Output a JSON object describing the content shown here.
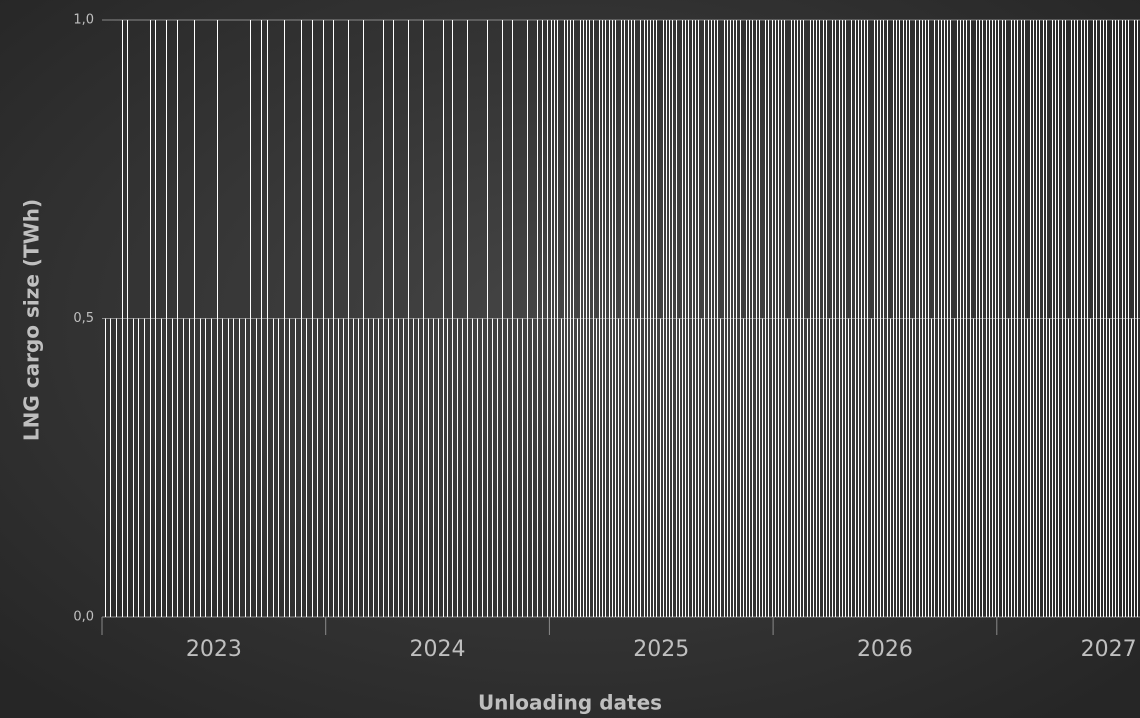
{
  "chart_data": {
    "type": "bar",
    "ylabel": "LNG cargo size (TWh)",
    "xlabel": "Unloading dates",
    "ylim": [
      0,
      1
    ],
    "yticks": [
      {
        "value": 0,
        "label": "0,0"
      },
      {
        "value": 0.5,
        "label": "0,5"
      },
      {
        "value": 1,
        "label": "1,0"
      }
    ],
    "grid": true,
    "color": "#ffffff",
    "groups": [
      {
        "label": "2023",
        "values": [
          0.5,
          0.5,
          0.5,
          1,
          1,
          0.5,
          0.5,
          0.5,
          1,
          1,
          0.5,
          1,
          0.5,
          1,
          0.5,
          0.5,
          1,
          0.5,
          0.5,
          0.5,
          1,
          0.5,
          0.5,
          0.5,
          0.5,
          0.5,
          1,
          0.5,
          1,
          1,
          0.5,
          0.5,
          1,
          0.5,
          0.5,
          1,
          0.5,
          1,
          0.5,
          1
        ]
      },
      {
        "label": "2024",
        "values": [
          0.5,
          1,
          0.5,
          0.5,
          1,
          0.5,
          0.5,
          1,
          0.5,
          0.5,
          0.5,
          1,
          0.5,
          1,
          0.5,
          0.5,
          1,
          0.5,
          0.5,
          1,
          0.5,
          0.5,
          0.5,
          1,
          0.5,
          1,
          0.5,
          0.5,
          1,
          0.5,
          0.5,
          0.5,
          1,
          0.5,
          0.5,
          1,
          0.5,
          1,
          0.5,
          0.5,
          1,
          0.5,
          1,
          1,
          1
        ]
      },
      {
        "label": "2025",
        "values": [
          1,
          1,
          1,
          0.5,
          1,
          1,
          1,
          1,
          0.5,
          1,
          1,
          1,
          1,
          1,
          0.5,
          1,
          1,
          1,
          1,
          1,
          1,
          0.5,
          1,
          1,
          1,
          1,
          1,
          0.5,
          1,
          1,
          1,
          1,
          1,
          1,
          0.5,
          1,
          1,
          1,
          1,
          1,
          0.5,
          1,
          1,
          1,
          1,
          1,
          1,
          0.5,
          1,
          1,
          1,
          1,
          1,
          0.5,
          1,
          1,
          1,
          1,
          1,
          1,
          0.5,
          1,
          1,
          1,
          1,
          1,
          0.5,
          1,
          1,
          1
        ]
      },
      {
        "label": "2026",
        "values": [
          1,
          1,
          1,
          1,
          0.5,
          1,
          1,
          1,
          1,
          1,
          0.5,
          1,
          1,
          1,
          1,
          1,
          1,
          0.5,
          1,
          1,
          1,
          1,
          1,
          0.5,
          1,
          1,
          1,
          1,
          1,
          1,
          0.5,
          1,
          1,
          1,
          1,
          1,
          0.5,
          1,
          1,
          1,
          1,
          1,
          1,
          0.5,
          1,
          1,
          1,
          1,
          1,
          0.5,
          1,
          1,
          1,
          1,
          1,
          1,
          0.5,
          1,
          1,
          1,
          1,
          1,
          0.5,
          1,
          1,
          1,
          1,
          1,
          1,
          1
        ]
      },
      {
        "label": "2027",
        "values": [
          1,
          1,
          1,
          0.5,
          1,
          1,
          1,
          1,
          1,
          0.5,
          1,
          1,
          1,
          1,
          1,
          1,
          0.5,
          1,
          1,
          1,
          1,
          1,
          0.5,
          1,
          1,
          1,
          1,
          1,
          1,
          0.5,
          1,
          1,
          1,
          1,
          1,
          0.5,
          1,
          1,
          1,
          1,
          1,
          1,
          0.5,
          1,
          1
        ]
      }
    ]
  }
}
